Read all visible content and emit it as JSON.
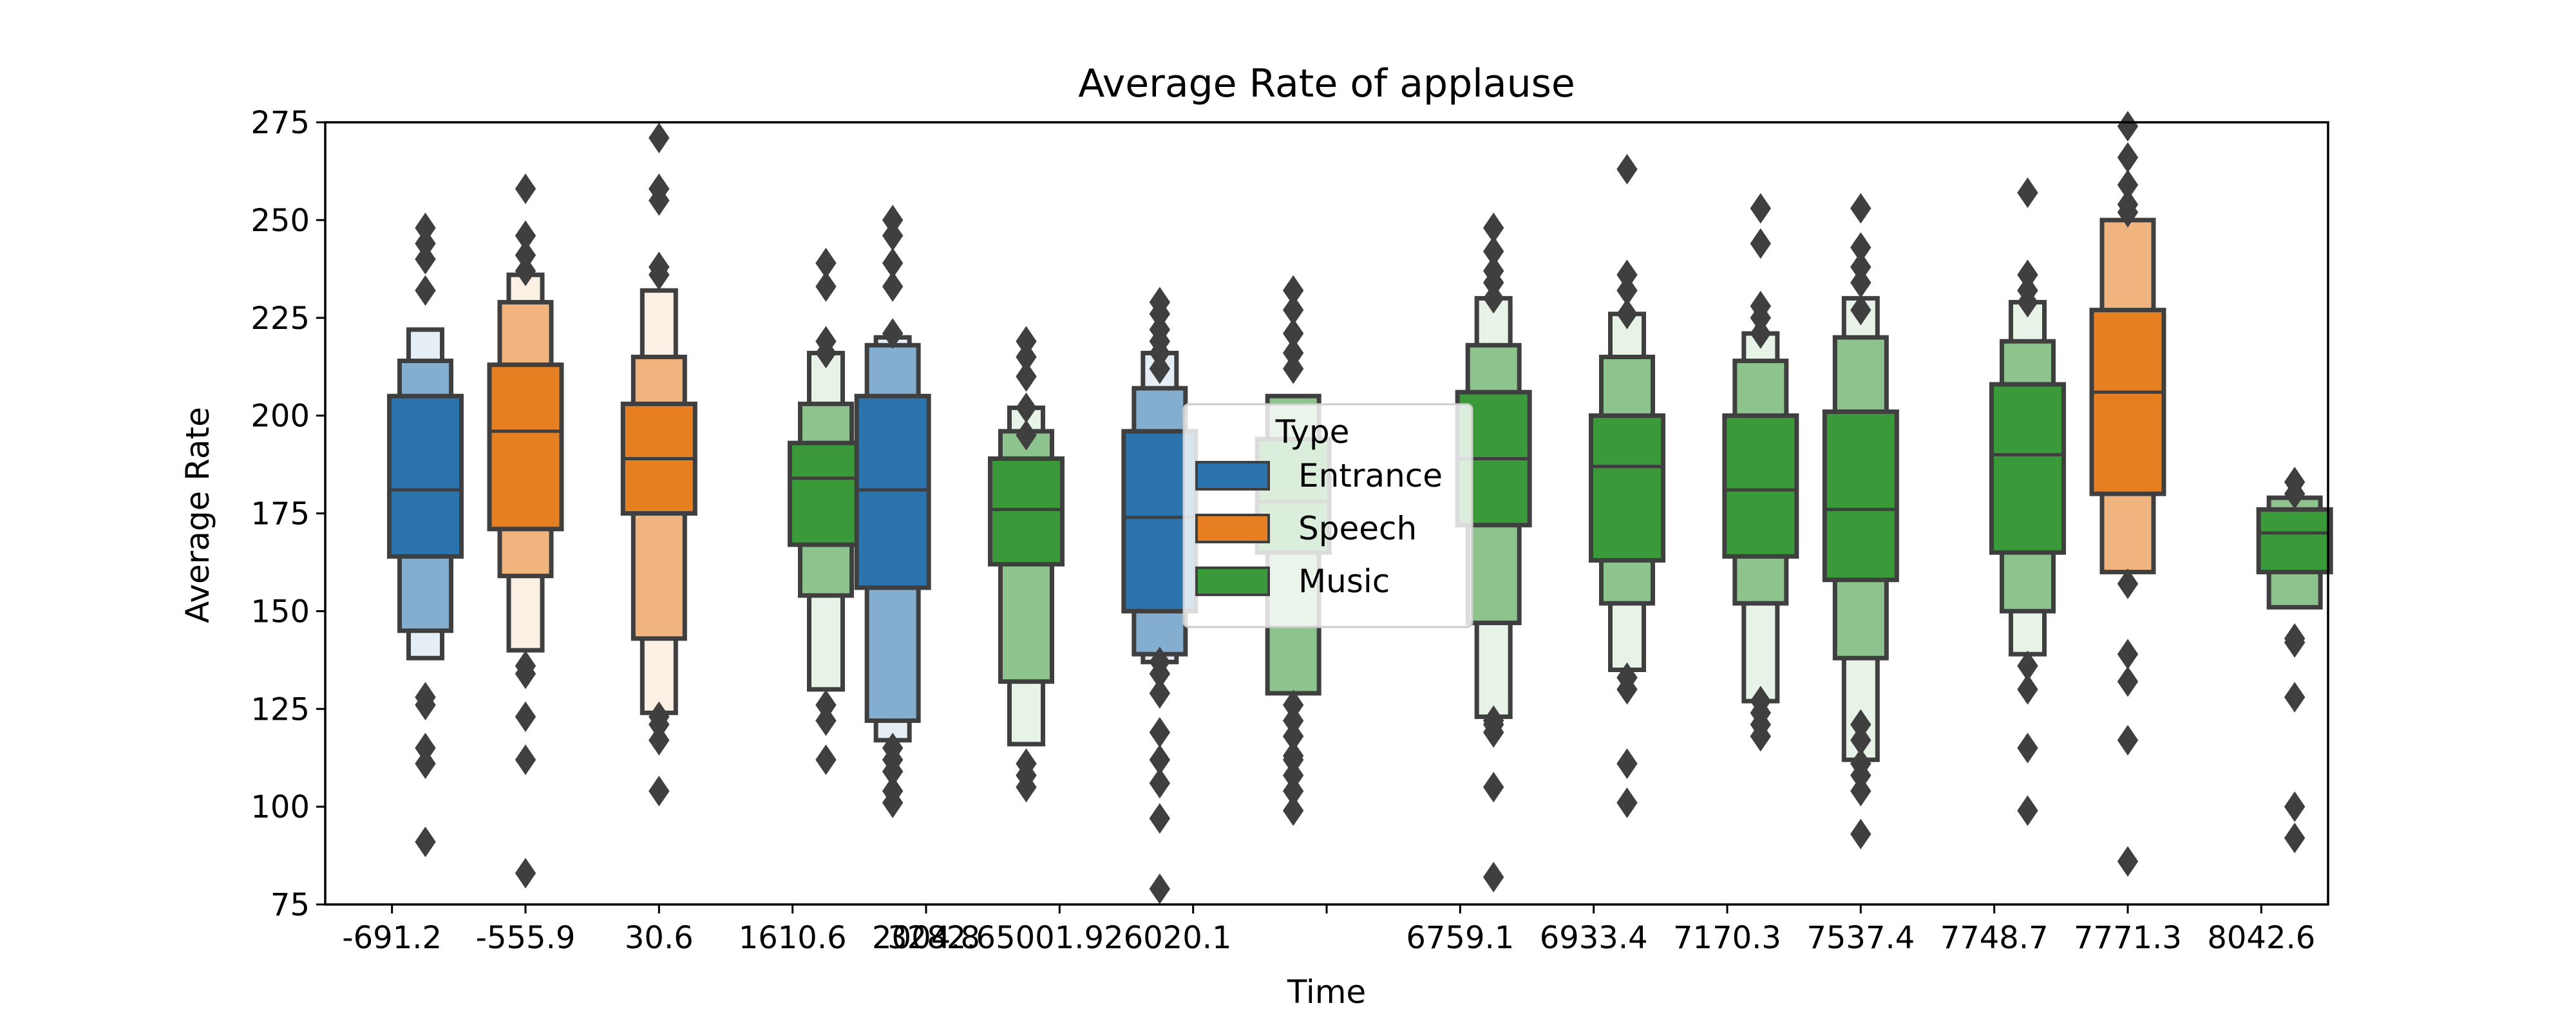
{
  "chart_data": {
    "type": "boxen",
    "title": "Average Rate of applause",
    "xlabel": "Time",
    "ylabel": "Average Rate",
    "ylim": [
      75,
      275
    ],
    "yticks": [
      75,
      100,
      125,
      150,
      175,
      200,
      225,
      250,
      275
    ],
    "categories": [
      "-691.2",
      "-555.9",
      "30.6",
      "1610.6",
      "2004.8",
      "3282.6",
      "5001.9",
      "26020.1",
      "6759.1",
      "6933.4",
      "7170.3",
      "7537.4",
      "7748.7",
      "7771.3",
      "8042.6"
    ],
    "category_labels": [
      "-691.2",
      "-555.9",
      "30.6",
      "1610.6",
      "2004.8",
      "3282.65001.926020.1",
      "",
      "",
      "6759.1",
      "6933.4",
      "7170.3",
      "7537.4",
      "7748.7",
      "7771.3",
      "8042.6"
    ],
    "legend": {
      "title": "Type",
      "position": "center",
      "entries": [
        "Entrance",
        "Speech",
        "Music"
      ]
    },
    "colors": {
      "Entrance": "#2b73ad",
      "Speech": "#e67e22",
      "Music": "#3a9a3a"
    },
    "series": [
      {
        "category": "-691.2",
        "type": "Entrance",
        "offset": 0.25,
        "median": 181,
        "levels": [
          [
            164,
            205
          ],
          [
            145,
            214
          ],
          [
            138,
            222
          ]
        ],
        "outliers": [
          91,
          111,
          115,
          126,
          128,
          232,
          240,
          244,
          248
        ]
      },
      {
        "category": "-555.9",
        "type": "Speech",
        "offset": 0.0,
        "median": 196,
        "levels": [
          [
            171,
            213
          ],
          [
            159,
            229
          ],
          [
            140,
            236
          ]
        ],
        "outliers": [
          83,
          112,
          123,
          134,
          136,
          237,
          241,
          246,
          258
        ]
      },
      {
        "category": "30.6",
        "type": "Speech",
        "offset": 0.0,
        "median": 189,
        "levels": [
          [
            175,
            203
          ],
          [
            143,
            215
          ],
          [
            124,
            232
          ]
        ],
        "outliers": [
          104,
          117,
          121,
          123,
          236,
          238,
          255,
          258,
          271
        ]
      },
      {
        "category": "1610.6",
        "type": "Music",
        "offset": 0.25,
        "median": 184,
        "levels": [
          [
            167,
            193
          ],
          [
            154,
            203
          ],
          [
            130,
            216
          ]
        ],
        "outliers": [
          112,
          122,
          126,
          216,
          219,
          233,
          239
        ]
      },
      {
        "category": "2004.8",
        "type": "Entrance",
        "offset": -0.25,
        "median": 181,
        "levels": [
          [
            156,
            205
          ],
          [
            122,
            218
          ],
          [
            117,
            220
          ]
        ],
        "outliers": [
          101,
          104,
          109,
          112,
          115,
          221,
          233,
          239,
          246,
          250
        ]
      },
      {
        "category": "3282.6",
        "type": "Music",
        "offset": -0.25,
        "median": 176,
        "levels": [
          [
            162,
            189
          ],
          [
            132,
            196
          ],
          [
            116,
            202
          ]
        ],
        "outliers": [
          105,
          108,
          111,
          195,
          202,
          210,
          215,
          219
        ]
      },
      {
        "category": "5001.9",
        "type": "Entrance",
        "offset": -0.25,
        "median": 174,
        "levels": [
          [
            150,
            196
          ],
          [
            139,
            207
          ],
          [
            137,
            216
          ]
        ],
        "outliers": [
          79,
          97,
          106,
          112,
          119,
          129,
          134,
          137,
          212,
          216,
          219,
          222,
          226,
          229
        ]
      },
      {
        "category": "26020.1",
        "type": "Music",
        "offset": -0.25,
        "median": 178,
        "levels": [
          [
            165,
            194
          ],
          [
            129,
            205
          ]
        ],
        "outliers": [
          99,
          104,
          108,
          112,
          113,
          118,
          122,
          126,
          212,
          216,
          221,
          227,
          232
        ]
      },
      {
        "category": "6759.1",
        "type": "Music",
        "offset": 0.25,
        "median": 189,
        "levels": [
          [
            172,
            206
          ],
          [
            147,
            218
          ],
          [
            123,
            230
          ]
        ],
        "outliers": [
          82,
          105,
          119,
          121,
          122,
          230,
          234,
          237,
          242,
          248
        ]
      },
      {
        "category": "6933.4",
        "type": "Music",
        "offset": 0.25,
        "median": 187,
        "levels": [
          [
            163,
            200
          ],
          [
            152,
            215
          ],
          [
            135,
            226
          ]
        ],
        "outliers": [
          101,
          111,
          130,
          133,
          226,
          232,
          236,
          263
        ]
      },
      {
        "category": "7170.3",
        "type": "Music",
        "offset": 0.25,
        "median": 181,
        "levels": [
          [
            164,
            200
          ],
          [
            152,
            214
          ],
          [
            127,
            221
          ]
        ],
        "outliers": [
          118,
          121,
          124,
          127,
          221,
          225,
          228,
          244,
          253
        ]
      },
      {
        "category": "7537.4",
        "type": "Music",
        "offset": 0.0,
        "median": 176,
        "levels": [
          [
            158,
            201
          ],
          [
            138,
            220
          ],
          [
            112,
            230
          ]
        ],
        "outliers": [
          93,
          104,
          108,
          111,
          117,
          121,
          227,
          234,
          238,
          243,
          253
        ]
      },
      {
        "category": "7748.7",
        "type": "Music",
        "offset": 0.25,
        "median": 190,
        "levels": [
          [
            165,
            208
          ],
          [
            150,
            219
          ],
          [
            139,
            229
          ]
        ],
        "outliers": [
          99,
          115,
          130,
          136,
          229,
          232,
          236,
          257
        ]
      },
      {
        "category": "7771.3",
        "type": "Speech",
        "offset": 0.0,
        "median": 206,
        "levels": [
          [
            180,
            227
          ],
          [
            160,
            250
          ]
        ],
        "outliers": [
          86,
          117,
          132,
          139,
          157,
          252,
          254,
          259,
          266,
          274
        ]
      },
      {
        "category": "8042.6",
        "type": "Music",
        "offset": 0.25,
        "median": 170,
        "levels": [
          [
            160,
            176
          ],
          [
            151,
            179
          ]
        ],
        "outliers": [
          92,
          100,
          128,
          142,
          143,
          180,
          183
        ]
      }
    ]
  }
}
